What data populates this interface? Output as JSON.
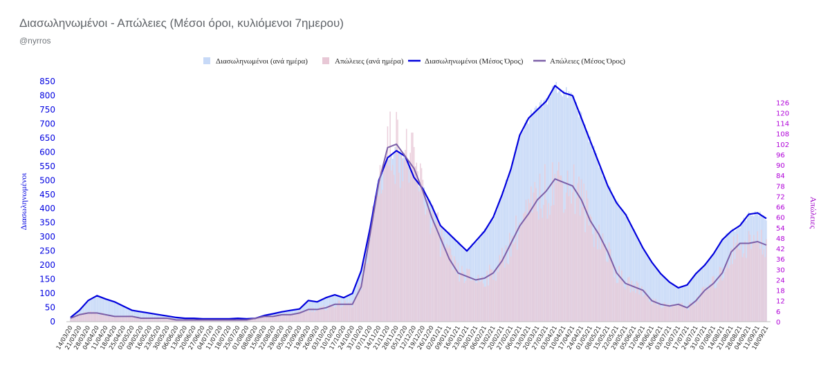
{
  "header": {
    "title": "Διασωληνωμένοι - Απώλειες (Μέσοι όροι, κυλιόμενοι 7ημερου)",
    "subtitle": "@nyrros"
  },
  "colors": {
    "intubated_bar": "#c7d9f7",
    "deaths_bar": "#e8c8d6",
    "intubated_line": "#0000dd",
    "deaths_line": "#7b5ea7",
    "left_axis": "#0000e0",
    "right_axis": "#b000d8"
  },
  "chart_data": {
    "type": "bar+line",
    "title": "Διασωληνωμένοι - Απώλειες (Μέσοι όροι, κυλιόμενοι 7ημερου)",
    "legend_position": "top-center",
    "grid": false,
    "y_left": {
      "label": "Διασωληνωμένοι",
      "range": [
        0,
        850
      ],
      "ticks": [
        "0",
        "50",
        "100",
        "150",
        "200",
        "250",
        "300",
        "350",
        "400",
        "450",
        "500",
        "550",
        "600",
        "650",
        "700",
        "750",
        "800",
        "850"
      ]
    },
    "y_right": {
      "label": "Απώλειες",
      "range": [
        0,
        138
      ],
      "ticks": [
        "0",
        "6",
        "12",
        "18",
        "24",
        "30",
        "36",
        "42",
        "48",
        "54",
        "60",
        "66",
        "72",
        "78",
        "84",
        "90",
        "96",
        "102",
        "108",
        "114",
        "120",
        "126"
      ]
    },
    "x_tick_labels": [
      "14/03/20",
      "21/03/20",
      "28/03/20",
      "04/04/20",
      "11/04/20",
      "18/04/20",
      "25/04/20",
      "02/05/20",
      "09/05/20",
      "16/05/20",
      "23/05/20",
      "30/05/20",
      "06/06/20",
      "13/06/20",
      "20/06/20",
      "27/06/20",
      "04/07/20",
      "11/07/20",
      "18/07/20",
      "25/07/20",
      "01/08/20",
      "08/08/20",
      "15/08/20",
      "22/08/20",
      "29/08/20",
      "05/09/20",
      "12/09/20",
      "19/09/20",
      "26/09/20",
      "03/10/20",
      "10/10/20",
      "17/10/20",
      "24/10/20",
      "31/10/20",
      "07/11/20",
      "14/11/20",
      "21/11/20",
      "28/11/20",
      "05/12/20",
      "12/12/20",
      "19/12/20",
      "26/12/20",
      "02/01/21",
      "09/01/21",
      "16/01/21",
      "23/01/21",
      "30/01/21",
      "06/02/21",
      "13/02/21",
      "20/02/21",
      "27/02/21",
      "06/03/21",
      "13/03/21",
      "20/03/21",
      "27/03/21",
      "03/04/21",
      "10/04/21",
      "17/04/21",
      "24/04/21",
      "01/05/21",
      "08/05/21",
      "15/05/21",
      "22/05/21",
      "29/05/21",
      "05/06/21",
      "12/06/21",
      "19/06/21",
      "26/06/21",
      "03/07/21",
      "10/07/21",
      "17/07/21",
      "24/07/21",
      "31/07/21",
      "07/08/21",
      "14/08/21",
      "21/08/21",
      "28/08/21",
      "04/09/21",
      "11/09/21",
      "18/09/21"
    ],
    "series": [
      {
        "name": "Διασωληνωμένοι (ανά ημέρα)",
        "type": "bar",
        "axis": "left"
      },
      {
        "name": "Απώλειες (ανά ημέρα)",
        "type": "bar",
        "axis": "right"
      },
      {
        "name": "Διασωληνωμένοι (Μέσος Όρος)",
        "type": "line",
        "axis": "left",
        "weekly_values": [
          15,
          40,
          75,
          92,
          80,
          70,
          55,
          40,
          35,
          30,
          25,
          20,
          15,
          12,
          12,
          10,
          10,
          10,
          10,
          12,
          10,
          12,
          22,
          28,
          35,
          40,
          45,
          75,
          70,
          85,
          95,
          85,
          100,
          180,
          330,
          500,
          580,
          605,
          585,
          510,
          470,
          410,
          340,
          310,
          280,
          250,
          285,
          320,
          370,
          450,
          540,
          660,
          720,
          750,
          780,
          835,
          810,
          800,
          720,
          640,
          560,
          480,
          420,
          380,
          320,
          260,
          210,
          170,
          140,
          120,
          130,
          170,
          200,
          240,
          290,
          320,
          340,
          380,
          385,
          365
        ]
      },
      {
        "name": "Απώλειες (Μέσος Όρος)",
        "type": "line",
        "axis": "right",
        "weekly_values": [
          2,
          4,
          5,
          5,
          4,
          3,
          3,
          3,
          2,
          2,
          2,
          2,
          1,
          1,
          1,
          1,
          1,
          1,
          1,
          1,
          1,
          2,
          3,
          3,
          4,
          4,
          5,
          7,
          7,
          8,
          10,
          10,
          10,
          20,
          50,
          80,
          100,
          102,
          95,
          88,
          75,
          60,
          48,
          36,
          28,
          26,
          24,
          25,
          28,
          35,
          45,
          55,
          62,
          70,
          75,
          82,
          80,
          78,
          70,
          58,
          50,
          40,
          28,
          22,
          20,
          18,
          12,
          10,
          9,
          10,
          8,
          12,
          18,
          22,
          28,
          40,
          45,
          45,
          46,
          44
        ]
      }
    ]
  }
}
